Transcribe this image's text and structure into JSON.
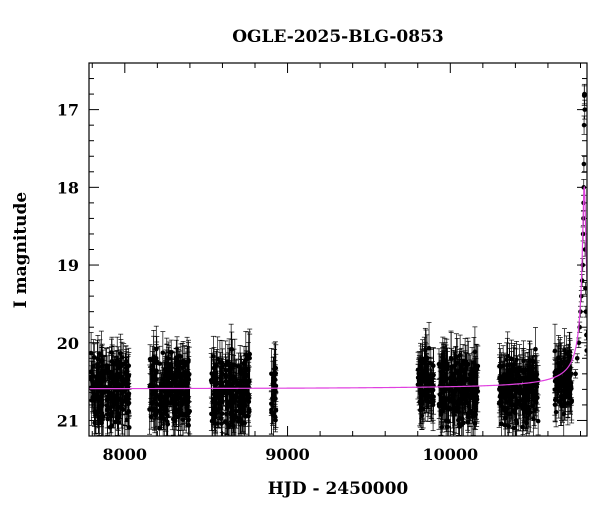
{
  "chart_data": {
    "type": "scatter",
    "title": "OGLE-2025-BLG-0853",
    "xlabel": "HJD - 2450000",
    "ylabel": "I magnitude",
    "xlim": [
      7780,
      10840
    ],
    "ylim": [
      21.2,
      16.4
    ],
    "y_inverted": true,
    "x_ticks": [
      8000,
      9000,
      10000
    ],
    "y_ticks": [
      17,
      18,
      19,
      20,
      21
    ],
    "grid": false,
    "colors": {
      "data": "#000000",
      "model": "#e040e0"
    },
    "observing_seasons": [
      {
        "start": 7790,
        "end": 8030,
        "mean": 20.6,
        "spread": 0.55
      },
      {
        "start": 8150,
        "end": 8400,
        "mean": 20.6,
        "spread": 0.55
      },
      {
        "start": 8530,
        "end": 8770,
        "mean": 20.6,
        "spread": 0.55
      },
      {
        "start": 8900,
        "end": 8930,
        "mean": 20.6,
        "spread": 0.45
      },
      {
        "start": 9800,
        "end": 9900,
        "mean": 20.5,
        "spread": 0.5
      },
      {
        "start": 9930,
        "end": 10170,
        "mean": 20.6,
        "spread": 0.55
      },
      {
        "start": 10300,
        "end": 10540,
        "mean": 20.6,
        "spread": 0.55
      },
      {
        "start": 10640,
        "end": 10750,
        "mean": 20.5,
        "spread": 0.5
      }
    ],
    "event_points": [
      {
        "x": 10770,
        "y": 20.4
      },
      {
        "x": 10780,
        "y": 20.2
      },
      {
        "x": 10790,
        "y": 20.0
      },
      {
        "x": 10795,
        "y": 19.8
      },
      {
        "x": 10800,
        "y": 19.6
      },
      {
        "x": 10805,
        "y": 19.4
      },
      {
        "x": 10810,
        "y": 19.2
      },
      {
        "x": 10814,
        "y": 19.0
      },
      {
        "x": 10816,
        "y": 18.6
      },
      {
        "x": 10818,
        "y": 18.4
      },
      {
        "x": 10819,
        "y": 18.2
      },
      {
        "x": 10820,
        "y": 18.0
      },
      {
        "x": 10821,
        "y": 17.7
      },
      {
        "x": 10822,
        "y": 17.2
      },
      {
        "x": 10823,
        "y": 16.82
      },
      {
        "x": 10824,
        "y": 16.8
      },
      {
        "x": 10826,
        "y": 17.0
      },
      {
        "x": 10828,
        "y": 18.8
      },
      {
        "x": 10830,
        "y": 19.3
      },
      {
        "x": 10833,
        "y": 19.6
      },
      {
        "x": 10836,
        "y": 19.9
      },
      {
        "x": 10838,
        "y": 20.1
      }
    ],
    "model": {
      "baseline": 20.6,
      "peak_x": 10823,
      "peak_y": 18.0
    }
  }
}
